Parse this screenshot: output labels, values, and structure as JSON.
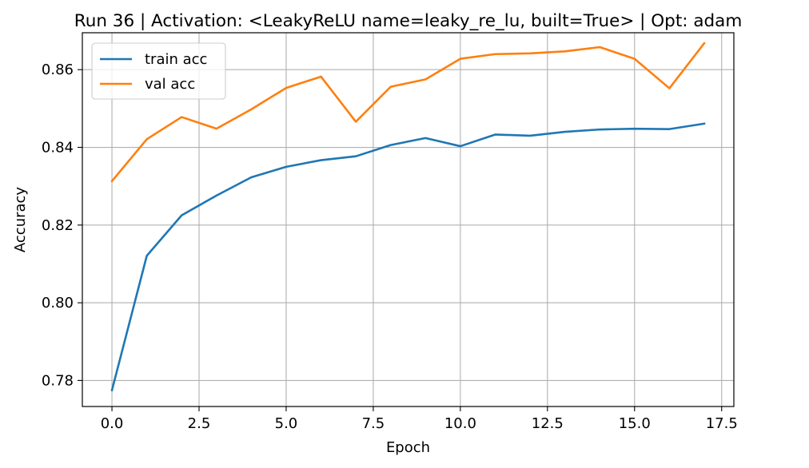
{
  "chart_data": {
    "type": "line",
    "title": "Run 36 | Activation: <LeakyReLU name=leaky_re_lu, built=True> | Opt: adam",
    "xlabel": "Epoch",
    "ylabel": "Accuracy",
    "xlim": [
      -0.85,
      17.85
    ],
    "ylim": [
      0.7733,
      0.8695
    ],
    "x_ticks": [
      0.0,
      2.5,
      5.0,
      7.5,
      10.0,
      12.5,
      15.0,
      17.5
    ],
    "x_tick_labels": [
      "0.0",
      "2.5",
      "5.0",
      "7.5",
      "10.0",
      "12.5",
      "15.0",
      "17.5"
    ],
    "y_ticks": [
      0.78,
      0.8,
      0.82,
      0.84,
      0.86
    ],
    "y_tick_labels": [
      "0.78",
      "0.80",
      "0.82",
      "0.84",
      "0.86"
    ],
    "grid": true,
    "legend_position": "upper-left",
    "x": [
      0,
      1,
      2,
      3,
      4,
      5,
      6,
      7,
      8,
      9,
      10,
      11,
      12,
      13,
      14,
      15,
      16,
      17
    ],
    "series": [
      {
        "name": "train acc",
        "color": "#1f77b4",
        "values": [
          0.7775,
          0.8121,
          0.8225,
          0.8276,
          0.8323,
          0.835,
          0.8367,
          0.8377,
          0.8406,
          0.8424,
          0.8403,
          0.8433,
          0.843,
          0.844,
          0.8446,
          0.8448,
          0.8447,
          0.8461
        ]
      },
      {
        "name": "val acc",
        "color": "#ff7f0e",
        "values": [
          0.8313,
          0.8421,
          0.8478,
          0.8448,
          0.8498,
          0.8553,
          0.8582,
          0.8466,
          0.8556,
          0.8575,
          0.8628,
          0.864,
          0.8642,
          0.8647,
          0.8658,
          0.8628,
          0.8552,
          0.8668
        ]
      }
    ]
  }
}
